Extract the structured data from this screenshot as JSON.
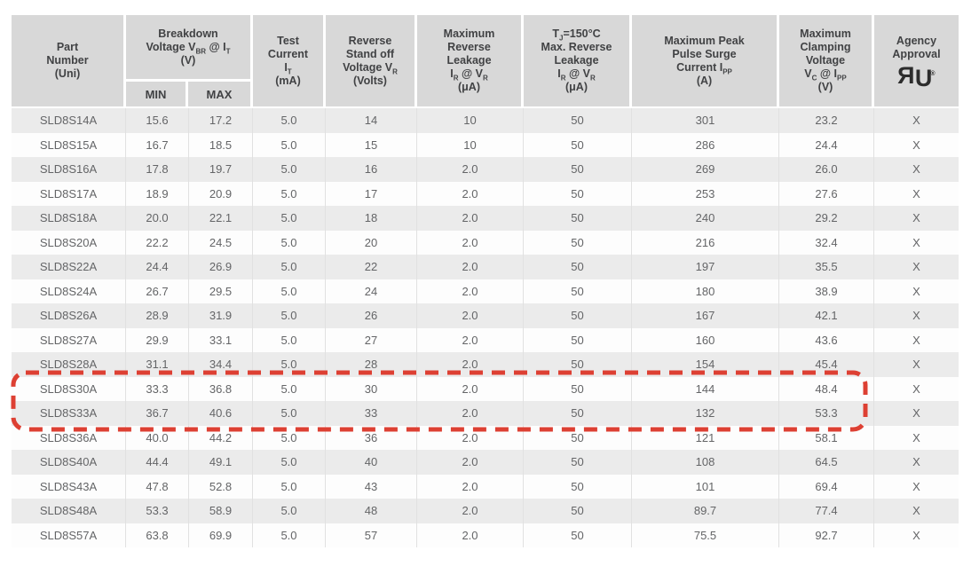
{
  "colors": {
    "header_bg": "#d8d8d8",
    "row_gray": "#ebebeb",
    "row_white": "#fdfdfd",
    "header_text": "#414244",
    "data_text": "#646567",
    "grid_line": "#e1e1e1",
    "highlight_red": "#dd4033"
  },
  "table": {
    "column_keys": [
      "part",
      "min",
      "max",
      "test",
      "standoff",
      "leakage",
      "tj-leakage",
      "surge",
      "clamping",
      "agency"
    ],
    "header": [
      {
        "key": "part",
        "segments": [
          {
            "t": "Part"
          },
          {
            "br": true
          },
          {
            "t": "Number"
          },
          {
            "br": true
          },
          {
            "t": "(Uni)"
          }
        ]
      },
      {
        "key": "breakdown",
        "segments": [
          {
            "t": "Breakdown"
          },
          {
            "br": true
          },
          {
            "t": "Voltage V"
          },
          {
            "t": "BR",
            "sub": true
          },
          {
            "t": " @ I"
          },
          {
            "t": "T",
            "sub": true
          },
          {
            "br": true
          },
          {
            "t": "(V)"
          }
        ],
        "children": [
          {
            "key": "min",
            "segments": [
              {
                "t": "MIN"
              }
            ]
          },
          {
            "key": "max",
            "segments": [
              {
                "t": "MAX"
              }
            ]
          }
        ]
      },
      {
        "key": "test",
        "segments": [
          {
            "t": "Test"
          },
          {
            "br": true
          },
          {
            "t": "Current"
          },
          {
            "br": true
          },
          {
            "t": "I"
          },
          {
            "t": "T",
            "sub": true
          },
          {
            "br": true
          },
          {
            "t": "(mA)"
          }
        ]
      },
      {
        "key": "standoff",
        "segments": [
          {
            "t": "Reverse"
          },
          {
            "br": true
          },
          {
            "t": "Stand off"
          },
          {
            "br": true
          },
          {
            "t": "Voltage V"
          },
          {
            "t": "R",
            "sub": true
          },
          {
            "br": true
          },
          {
            "t": "(Volts)"
          }
        ]
      },
      {
        "key": "leakage",
        "segments": [
          {
            "t": "Maximum"
          },
          {
            "br": true
          },
          {
            "t": "Reverse"
          },
          {
            "br": true
          },
          {
            "t": "Leakage"
          },
          {
            "br": true
          },
          {
            "t": "I"
          },
          {
            "t": "R",
            "sub": true
          },
          {
            "t": " @ V"
          },
          {
            "t": "R",
            "sub": true
          },
          {
            "br": true
          },
          {
            "t": "(μA)"
          }
        ]
      },
      {
        "key": "tj-leakage",
        "segments": [
          {
            "t": "T"
          },
          {
            "t": "J",
            "sub": true
          },
          {
            "t": "=150°C"
          },
          {
            "br": true
          },
          {
            "t": "Max. Reverse"
          },
          {
            "br": true
          },
          {
            "t": "Leakage"
          },
          {
            "br": true
          },
          {
            "t": "I"
          },
          {
            "t": "R",
            "sub": true
          },
          {
            "t": " @ V"
          },
          {
            "t": "R",
            "sub": true
          },
          {
            "br": true
          },
          {
            "t": "(μA)"
          }
        ]
      },
      {
        "key": "surge",
        "segments": [
          {
            "t": "Maximum Peak"
          },
          {
            "br": true
          },
          {
            "t": "Pulse Surge"
          },
          {
            "br": true
          },
          {
            "t": "Current I"
          },
          {
            "t": "PP",
            "sub": true
          },
          {
            "br": true
          },
          {
            "t": "(A)"
          }
        ]
      },
      {
        "key": "clamping",
        "segments": [
          {
            "t": "Maximum"
          },
          {
            "br": true
          },
          {
            "t": "Clamping"
          },
          {
            "br": true
          },
          {
            "t": "Voltage"
          },
          {
            "br": true
          },
          {
            "t": "V"
          },
          {
            "t": "C",
            "sub": true
          },
          {
            "t": " @ I"
          },
          {
            "t": "PP",
            "sub": true
          },
          {
            "br": true
          },
          {
            "t": "(V)"
          }
        ]
      },
      {
        "key": "agency",
        "segments": [
          {
            "t": "Agency"
          },
          {
            "br": true
          },
          {
            "t": "Approval"
          }
        ],
        "logo": "ul-recognized-mark"
      }
    ],
    "rows": [
      [
        "SLD8S14A",
        "15.6",
        "17.2",
        "5.0",
        "14",
        "10",
        "50",
        "301",
        "23.2",
        "X"
      ],
      [
        "SLD8S15A",
        "16.7",
        "18.5",
        "5.0",
        "15",
        "10",
        "50",
        "286",
        "24.4",
        "X"
      ],
      [
        "SLD8S16A",
        "17.8",
        "19.7",
        "5.0",
        "16",
        "2.0",
        "50",
        "269",
        "26.0",
        "X"
      ],
      [
        "SLD8S17A",
        "18.9",
        "20.9",
        "5.0",
        "17",
        "2.0",
        "50",
        "253",
        "27.6",
        "X"
      ],
      [
        "SLD8S18A",
        "20.0",
        "22.1",
        "5.0",
        "18",
        "2.0",
        "50",
        "240",
        "29.2",
        "X"
      ],
      [
        "SLD8S20A",
        "22.2",
        "24.5",
        "5.0",
        "20",
        "2.0",
        "50",
        "216",
        "32.4",
        "X"
      ],
      [
        "SLD8S22A",
        "24.4",
        "26.9",
        "5.0",
        "22",
        "2.0",
        "50",
        "197",
        "35.5",
        "X"
      ],
      [
        "SLD8S24A",
        "26.7",
        "29.5",
        "5.0",
        "24",
        "2.0",
        "50",
        "180",
        "38.9",
        "X"
      ],
      [
        "SLD8S26A",
        "28.9",
        "31.9",
        "5.0",
        "26",
        "2.0",
        "50",
        "167",
        "42.1",
        "X"
      ],
      [
        "SLD8S27A",
        "29.9",
        "33.1",
        "5.0",
        "27",
        "2.0",
        "50",
        "160",
        "43.6",
        "X"
      ],
      [
        "SLD8S28A",
        "31.1",
        "34.4",
        "5.0",
        "28",
        "2.0",
        "50",
        "154",
        "45.4",
        "X"
      ],
      [
        "SLD8S30A",
        "33.3",
        "36.8",
        "5.0",
        "30",
        "2.0",
        "50",
        "144",
        "48.4",
        "X"
      ],
      [
        "SLD8S33A",
        "36.7",
        "40.6",
        "5.0",
        "33",
        "2.0",
        "50",
        "132",
        "53.3",
        "X"
      ],
      [
        "SLD8S36A",
        "40.0",
        "44.2",
        "5.0",
        "36",
        "2.0",
        "50",
        "121",
        "58.1",
        "X"
      ],
      [
        "SLD8S40A",
        "44.4",
        "49.1",
        "5.0",
        "40",
        "2.0",
        "50",
        "108",
        "64.5",
        "X"
      ],
      [
        "SLD8S43A",
        "47.8",
        "52.8",
        "5.0",
        "43",
        "2.0",
        "50",
        "101",
        "69.4",
        "X"
      ],
      [
        "SLD8S48A",
        "53.3",
        "58.9",
        "5.0",
        "48",
        "2.0",
        "50",
        "89.7",
        "77.4",
        "X"
      ],
      [
        "SLD8S57A",
        "63.8",
        "69.9",
        "5.0",
        "57",
        "2.0",
        "50",
        "75.5",
        "92.7",
        "X"
      ]
    ]
  },
  "agency_logo": {
    "name": "ul-recognized-mark",
    "letters": [
      "R",
      "U"
    ],
    "registered_mark": "®"
  },
  "annotation": {
    "type": "red-dashed-box",
    "highlighted_parts": [
      "SLD8S30A",
      "SLD8S33A"
    ]
  }
}
